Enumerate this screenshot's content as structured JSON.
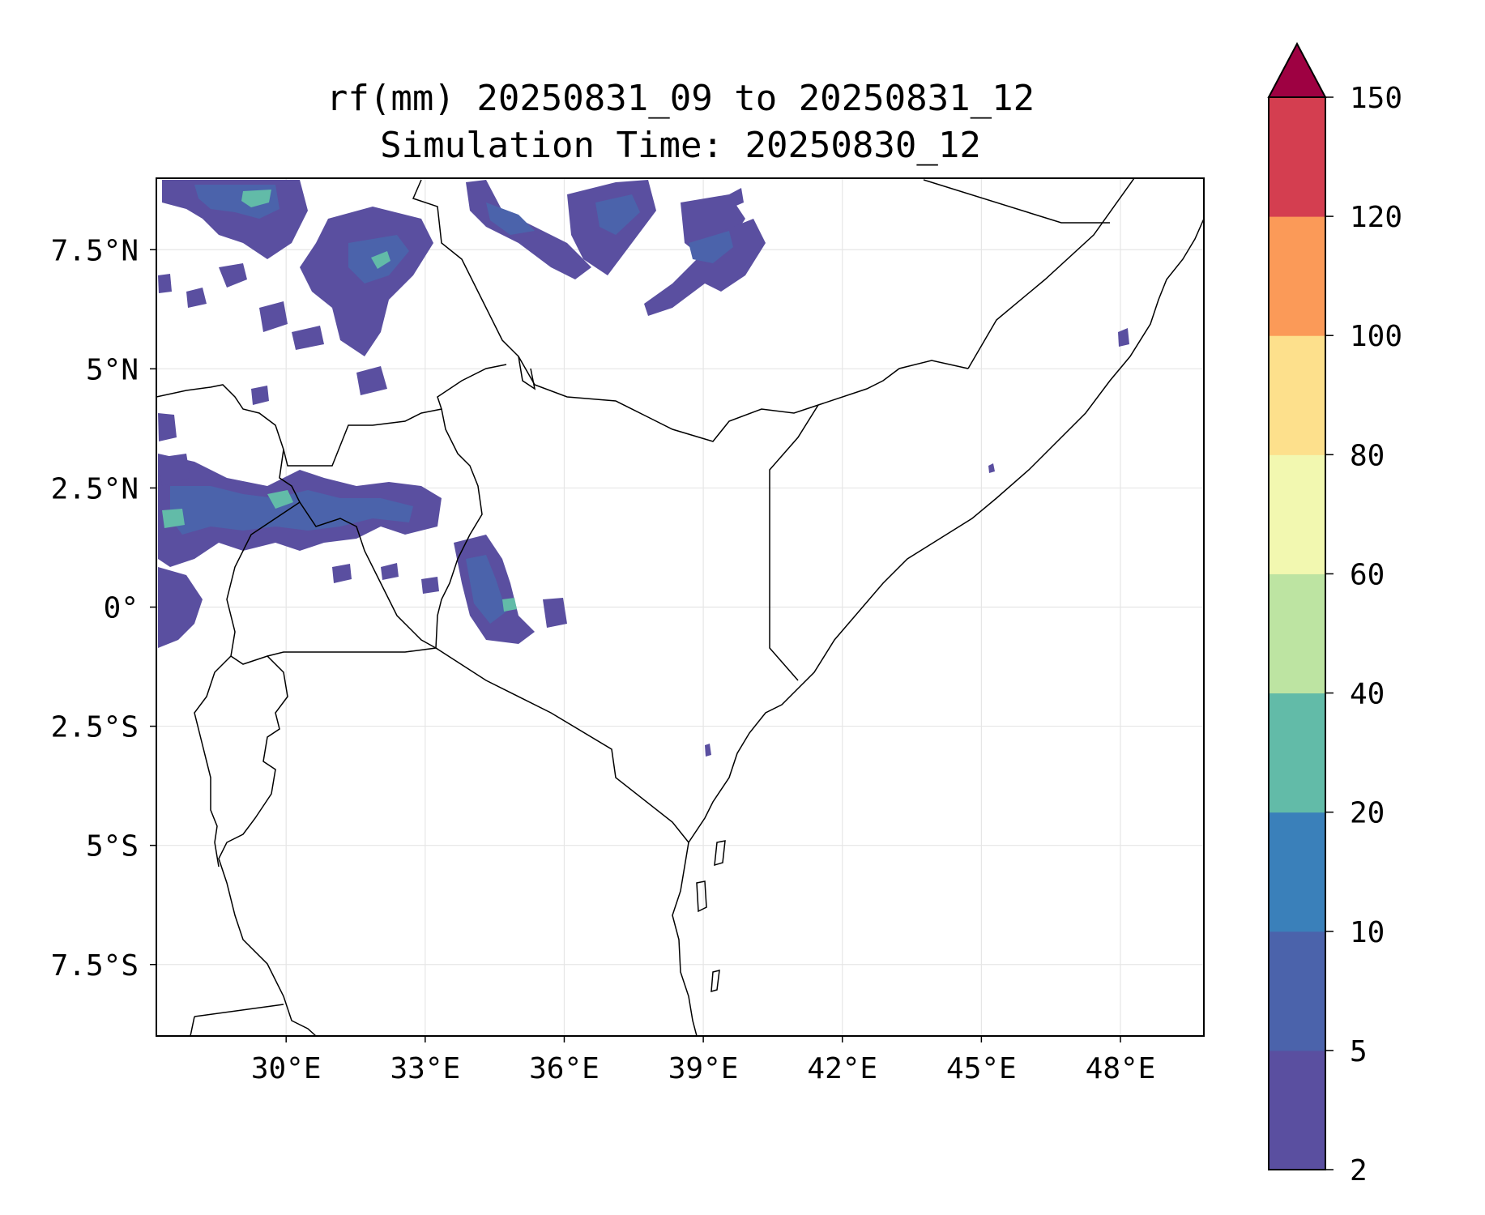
{
  "title": {
    "line1": "rf(mm) 20250831_09 to 20250831_12",
    "line2": "Simulation Time: 20250830_12"
  },
  "map": {
    "extent": {
      "lon_min": 27.2,
      "lon_max": 49.8,
      "lat_min": -9,
      "lat_max": 9
    },
    "x_ticks": [
      {
        "lon": 30,
        "label": "30°E"
      },
      {
        "lon": 33,
        "label": "33°E"
      },
      {
        "lon": 36,
        "label": "36°E"
      },
      {
        "lon": 39,
        "label": "39°E"
      },
      {
        "lon": 42,
        "label": "42°E"
      },
      {
        "lon": 45,
        "label": "45°E"
      },
      {
        "lon": 48,
        "label": "48°E"
      }
    ],
    "y_ticks": [
      {
        "lat": 7.5,
        "label": "7.5°N"
      },
      {
        "lat": 5,
        "label": "5°N"
      },
      {
        "lat": 2.5,
        "label": "2.5°N"
      },
      {
        "lat": 0,
        "label": "0°"
      },
      {
        "lat": -2.5,
        "label": "2.5°S"
      },
      {
        "lat": -5,
        "label": "5°S"
      },
      {
        "lat": -7.5,
        "label": "7.5°S"
      }
    ],
    "grid": true,
    "rain_color_level_1": "#5a4fa0",
    "rain_color_level_2": "#4b63ab",
    "rain_color_level_3": "#62bba8"
  },
  "colorbar": {
    "levels": [
      {
        "label": "2",
        "color": "#5a4fa0"
      },
      {
        "label": "5",
        "color": "#4b63ab"
      },
      {
        "label": "10",
        "color": "#3a80ba"
      },
      {
        "label": "20",
        "color": "#62bba8"
      },
      {
        "label": "40",
        "color": "#bde4a2"
      },
      {
        "label": "60",
        "color": "#f2f8b0"
      },
      {
        "label": "80",
        "color": "#fde08c"
      },
      {
        "label": "100",
        "color": "#fb9a58"
      },
      {
        "label": "120",
        "color": "#d43e50"
      },
      {
        "label": "150",
        "color": "#d43e50"
      }
    ],
    "extend_max_color": "#9e0142"
  }
}
